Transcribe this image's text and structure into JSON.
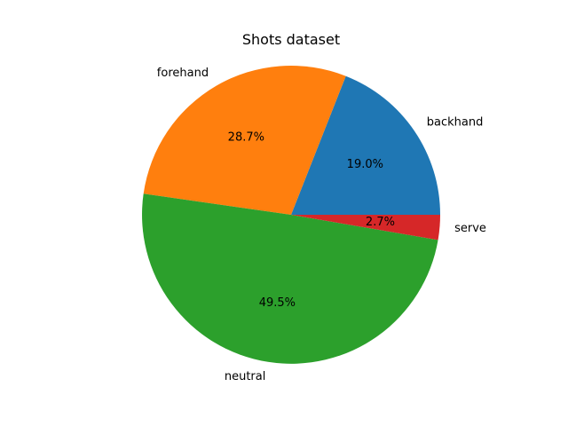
{
  "chart_data": {
    "type": "pie",
    "title": "Shots dataset",
    "categories": [
      "backhand",
      "forehand",
      "neutral",
      "serve"
    ],
    "values": [
      19.0,
      28.7,
      49.5,
      2.7
    ],
    "value_labels": [
      "19.0%",
      "28.7%",
      "49.5%",
      "2.7%"
    ],
    "colors": [
      "#1f77b4",
      "#ff7f0e",
      "#2ca02c",
      "#d62728"
    ],
    "start_angle_deg": 0,
    "direction": "counterclockwise",
    "legend": "none"
  }
}
